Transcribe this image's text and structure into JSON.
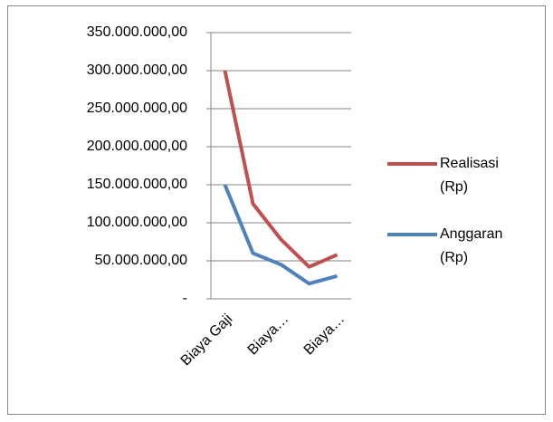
{
  "chart_data": {
    "type": "line",
    "categories": [
      "Biaya Gaji",
      null,
      "Biaya…",
      null,
      "Biaya…"
    ],
    "series": [
      {
        "name": "Realisasi (Rp)",
        "color": "#c0504d",
        "values": [
          300000000,
          125000000,
          78000000,
          42000000,
          58000000
        ]
      },
      {
        "name": "Anggaran (Rp)",
        "color": "#4f81bd",
        "values": [
          150000000,
          60000000,
          45000000,
          20000000,
          30000000
        ]
      }
    ],
    "ylim": [
      0,
      350000000
    ],
    "yticks": [
      {
        "value": 0,
        "label": "-"
      },
      {
        "value": 50000000,
        "label": "50.000.000,00"
      },
      {
        "value": 100000000,
        "label": "100.000.000,00"
      },
      {
        "value": 150000000,
        "label": "150.000.000,00"
      },
      {
        "value": 200000000,
        "label": "200.000.000,00"
      },
      {
        "value": 250000000,
        "label": "250.000.000,00"
      },
      {
        "value": 300000000,
        "label": "300.000.000,00"
      },
      {
        "value": 350000000,
        "label": "350.000.000,00"
      }
    ],
    "grid": true,
    "legend": "right"
  }
}
